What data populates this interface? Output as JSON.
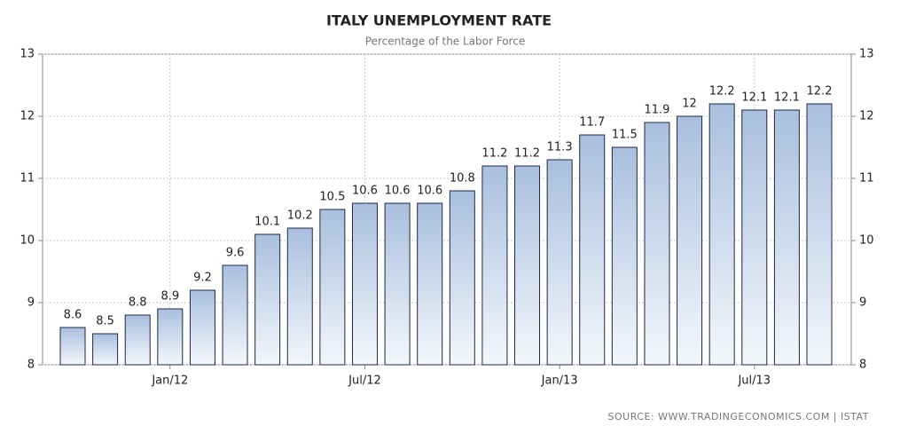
{
  "chart_data": {
    "type": "bar",
    "title": "ITALY UNEMPLOYMENT RATE",
    "subtitle": "Percentage of the Labor Force",
    "source": "SOURCE: WWW.TRADINGECONOMICS.COM | ISTAT",
    "categories": [
      null,
      null,
      null,
      "Jan/12",
      null,
      null,
      null,
      null,
      null,
      "Jul/12",
      null,
      null,
      null,
      null,
      null,
      "Jan/13",
      null,
      null,
      null,
      null,
      null,
      "Jul/13",
      null,
      null
    ],
    "values": [
      8.6,
      8.5,
      8.8,
      8.9,
      9.2,
      9.6,
      10.1,
      10.2,
      10.5,
      10.6,
      10.6,
      10.6,
      10.8,
      11.2,
      11.2,
      11.3,
      11.7,
      11.5,
      11.9,
      12,
      12.2,
      12.1,
      12.1,
      12.2
    ],
    "color": "#a9bfde",
    "ylim": [
      8,
      13
    ],
    "yticks": [
      8,
      9,
      10,
      11,
      12,
      13
    ],
    "y2lim": [
      8,
      13
    ],
    "y2ticks": [
      8,
      9,
      10,
      11,
      12,
      13
    ],
    "grid": true
  }
}
